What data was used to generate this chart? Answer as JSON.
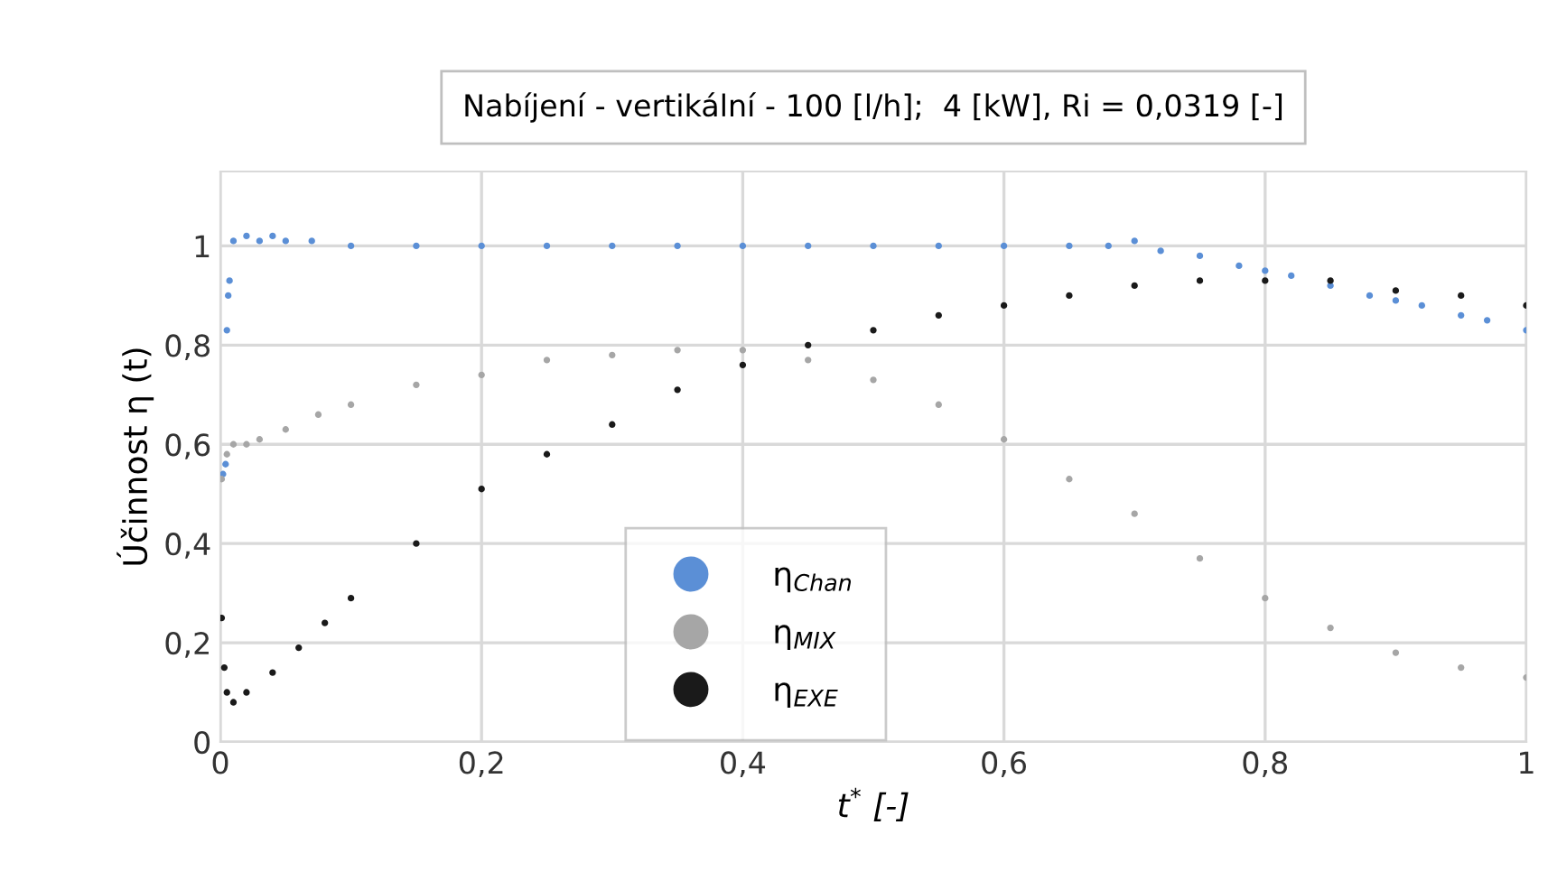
{
  "chart_data": {
    "type": "scatter",
    "title": "Nabíjení - vertikální - 100 [l/h];  4 [kW], Ri = 0,0319 [-]",
    "xlabel": "t$^{*}$ [-]",
    "ylabel": "Účinnost η (t)",
    "xlim": [
      0,
      1
    ],
    "ylim": [
      0,
      1.15
    ],
    "xticks": [
      0,
      {
        "value": 0.2,
        "label": "0,2"
      },
      {
        "value": 0.4,
        "label": "0,4"
      },
      {
        "value": 0.6,
        "label": "0,6"
      },
      {
        "value": 0.8,
        "label": "0,8"
      },
      1
    ],
    "yticks": [
      0,
      {
        "value": 0.2,
        "label": "0,2"
      },
      {
        "value": 0.4,
        "label": "0,4"
      },
      {
        "value": 0.6,
        "label": "0,6"
      },
      {
        "value": 0.8,
        "label": "0,8"
      },
      1
    ],
    "grid": true,
    "legend": "bottom",
    "marker": "circle",
    "series": [
      {
        "name": "η$_{Chan}$",
        "color": "#5b8fd6",
        "x": [
          0.002,
          0.004,
          0.005,
          0.006,
          0.007,
          0.01,
          0.02,
          0.03,
          0.04,
          0.05,
          0.07,
          0.1,
          0.15,
          0.2,
          0.25,
          0.3,
          0.35,
          0.4,
          0.45,
          0.5,
          0.55,
          0.6,
          0.65,
          0.68,
          0.7,
          0.72,
          0.75,
          0.78,
          0.8,
          0.82,
          0.85,
          0.88,
          0.9,
          0.92,
          0.95,
          0.97,
          1.0
        ],
        "values": [
          0.54,
          0.56,
          0.83,
          0.9,
          0.93,
          1.01,
          1.02,
          1.01,
          1.02,
          1.01,
          1.01,
          1.0,
          1.0,
          1.0,
          1.0,
          1.0,
          1.0,
          1.0,
          1.0,
          1.0,
          1.0,
          1.0,
          1.0,
          1.0,
          1.01,
          0.99,
          0.98,
          0.96,
          0.95,
          0.94,
          0.92,
          0.9,
          0.89,
          0.88,
          0.86,
          0.85,
          0.83
        ]
      },
      {
        "name": "η$_{MIX}$",
        "color": "#a6a6a6",
        "x": [
          0.001,
          0.005,
          0.01,
          0.02,
          0.03,
          0.05,
          0.075,
          0.1,
          0.15,
          0.2,
          0.25,
          0.3,
          0.35,
          0.4,
          0.45,
          0.5,
          0.55,
          0.6,
          0.65,
          0.7,
          0.75,
          0.8,
          0.85,
          0.9,
          0.95,
          1.0
        ],
        "values": [
          0.53,
          0.58,
          0.6,
          0.6,
          0.61,
          0.63,
          0.66,
          0.68,
          0.72,
          0.74,
          0.77,
          0.78,
          0.79,
          0.79,
          0.77,
          0.73,
          0.68,
          0.61,
          0.53,
          0.46,
          0.37,
          0.29,
          0.23,
          0.18,
          0.15,
          0.13
        ]
      },
      {
        "name": "η$_{EXE}$",
        "color": "#1a1a1a",
        "x": [
          0.001,
          0.003,
          0.005,
          0.01,
          0.02,
          0.04,
          0.06,
          0.08,
          0.1,
          0.15,
          0.2,
          0.25,
          0.3,
          0.35,
          0.4,
          0.45,
          0.5,
          0.55,
          0.6,
          0.65,
          0.7,
          0.75,
          0.8,
          0.85,
          0.9,
          0.95,
          1.0
        ],
        "values": [
          0.25,
          0.15,
          0.1,
          0.08,
          0.1,
          0.14,
          0.19,
          0.24,
          0.29,
          0.4,
          0.51,
          0.58,
          0.64,
          0.71,
          0.76,
          0.8,
          0.83,
          0.86,
          0.88,
          0.9,
          0.92,
          0.93,
          0.93,
          0.93,
          0.91,
          0.9,
          0.88
        ]
      }
    ]
  }
}
